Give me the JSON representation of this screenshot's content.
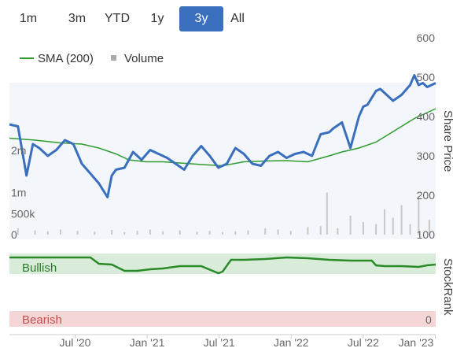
{
  "range_buttons": [
    {
      "label": "1m",
      "active": false
    },
    {
      "label": "3m",
      "active": false
    },
    {
      "label": "YTD",
      "active": false
    },
    {
      "label": "1y",
      "active": false
    },
    {
      "label": "3y",
      "active": true
    },
    {
      "label": "All",
      "active": false
    }
  ],
  "colors": {
    "price": "#3a6fbd",
    "sma": "#2e9c2e",
    "volume": "#c8c8c8",
    "bullish_band": "#d9ecd9",
    "bearish_band": "#f5d6d6",
    "stockrank": "#2a8a2a",
    "active_button": "#3a6fbd"
  },
  "legend": {
    "sma_label": "SMA (200)",
    "volume_label": "Volume"
  },
  "stockrank_panel": {
    "title": "StockRank",
    "bullish_label": "Bullish",
    "bearish_label": "Bearish",
    "bottom_value": "0"
  },
  "chart_data": {
    "type": "line",
    "x_tick_labels": [
      "Jul '20",
      "Jan '21",
      "Jul '21",
      "Jan '22",
      "Jul '22",
      "Jan '23"
    ],
    "y_right": {
      "label": "Share Price",
      "ticks": [
        "100",
        "200",
        "300",
        "400",
        "500",
        "600"
      ],
      "range": [
        100,
        600
      ]
    },
    "y_left": {
      "label": "",
      "ticks": [
        "0",
        "500k",
        "1m",
        "2m"
      ],
      "range": [
        0,
        2500000
      ]
    },
    "grid": false,
    "legend_position": "top-left",
    "series": [
      {
        "name": "",
        "type": "line",
        "t": [
          0,
          0.02,
          0.04,
          0.055,
          0.07,
          0.09,
          0.11,
          0.13,
          0.15,
          0.17,
          0.19,
          0.21,
          0.23,
          0.24,
          0.25,
          0.27,
          0.29,
          0.31,
          0.33,
          0.35,
          0.37,
          0.39,
          0.41,
          0.43,
          0.45,
          0.47,
          0.49,
          0.51,
          0.52,
          0.53,
          0.55,
          0.57,
          0.59,
          0.61,
          0.63,
          0.65,
          0.67,
          0.69,
          0.71,
          0.73,
          0.75,
          0.76,
          0.78,
          0.8,
          0.82,
          0.83,
          0.84,
          0.86,
          0.87,
          0.88,
          0.9,
          0.92,
          0.94,
          0.95,
          0.96,
          0.97,
          0.98,
          0.99,
          1.0
        ],
        "values": [
          380,
          375,
          250,
          330,
          320,
          300,
          315,
          340,
          330,
          280,
          255,
          230,
          195,
          250,
          265,
          270,
          310,
          290,
          315,
          305,
          295,
          280,
          265,
          300,
          325,
          300,
          270,
          280,
          300,
          320,
          305,
          280,
          275,
          300,
          310,
          295,
          305,
          310,
          300,
          355,
          360,
          370,
          385,
          320,
          400,
          425,
          430,
          465,
          470,
          460,
          440,
          455,
          480,
          505,
          480,
          485,
          475,
          480,
          485
        ]
      },
      {
        "name": "SMA (200)",
        "type": "line",
        "t": [
          0,
          0.06,
          0.12,
          0.17,
          0.21,
          0.25,
          0.28,
          0.32,
          0.36,
          0.4,
          0.45,
          0.5,
          0.55,
          0.6,
          0.65,
          0.7,
          0.75,
          0.78,
          0.82,
          0.86,
          0.89,
          0.92,
          0.95,
          0.98,
          1.0
        ],
        "values": [
          345,
          340,
          333,
          330,
          320,
          305,
          290,
          285,
          285,
          282,
          278,
          275,
          285,
          287,
          288,
          285,
          300,
          310,
          320,
          335,
          355,
          375,
          395,
          410,
          420
        ]
      },
      {
        "name": "Volume",
        "type": "bar",
        "t": [
          0.02,
          0.06,
          0.09,
          0.12,
          0.16,
          0.2,
          0.24,
          0.27,
          0.3,
          0.33,
          0.36,
          0.4,
          0.44,
          0.47,
          0.5,
          0.53,
          0.56,
          0.6,
          0.63,
          0.66,
          0.7,
          0.73,
          0.745,
          0.77,
          0.8,
          0.83,
          0.86,
          0.88,
          0.9,
          0.92,
          0.94,
          0.96,
          0.985
        ],
        "values": [
          150000,
          100000,
          80000,
          120000,
          90000,
          70000,
          110000,
          60000,
          90000,
          120000,
          80000,
          100000,
          70000,
          90000,
          60000,
          80000,
          100000,
          150000,
          120000,
          90000,
          180000,
          200000,
          1000000,
          150000,
          450000,
          300000,
          250000,
          600000,
          400000,
          700000,
          250000,
          900000,
          350000
        ]
      }
    ]
  }
}
